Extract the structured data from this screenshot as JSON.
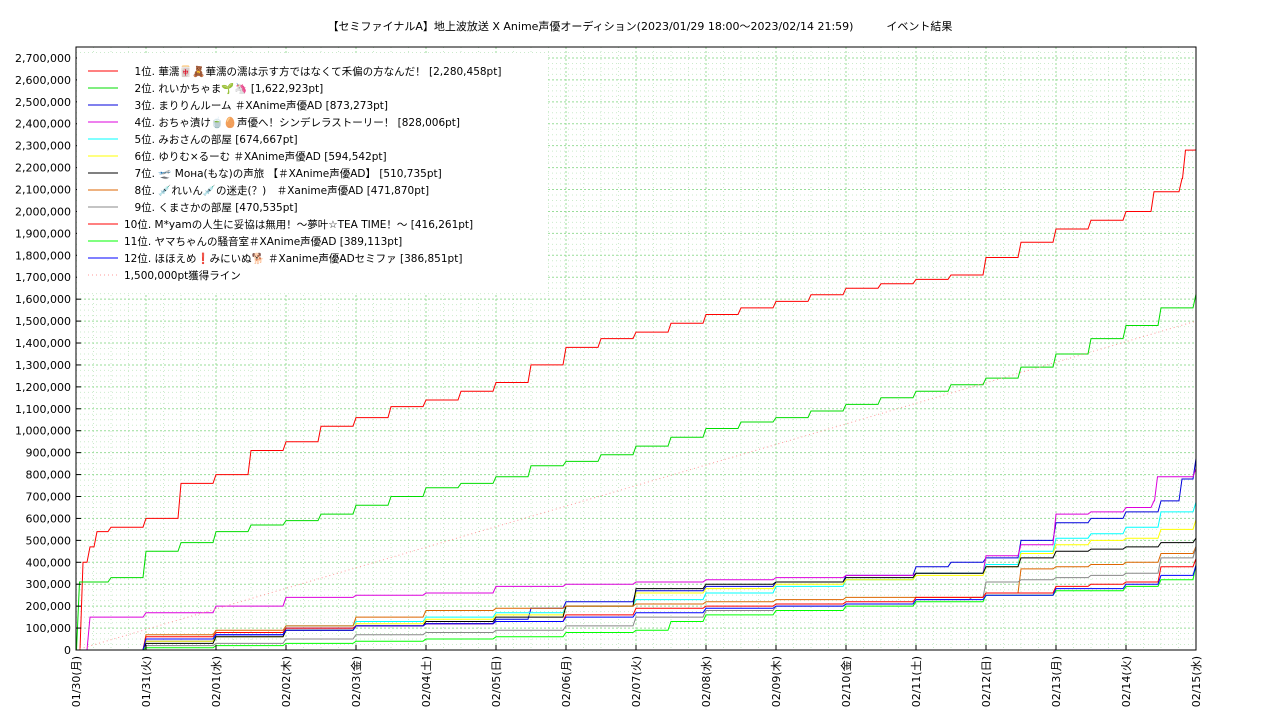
{
  "chart_data": {
    "type": "line",
    "title": "【セミファイナルA】地上波放送 X Anime声優オーディション(2023/01/29 18:00〜2023/02/14 21:59)　　　イベント結果",
    "xlabel": "",
    "ylabel": "",
    "xlim": [
      0,
      16
    ],
    "ylim": [
      0,
      2750000
    ],
    "grid": true,
    "legend_position": "top-left",
    "y_tick_labels": [
      "0",
      "100,000",
      "200,000",
      "300,000",
      "400,000",
      "500,000",
      "600,000",
      "700,000",
      "800,000",
      "900,000",
      "1,000,000",
      "1,100,000",
      "1,200,000",
      "1,300,000",
      "1,400,000",
      "1,500,000",
      "1,600,000",
      "1,700,000",
      "1,800,000",
      "1,900,000",
      "2,000,000",
      "2,100,000",
      "2,200,000",
      "2,300,000",
      "2,400,000",
      "2,500,000",
      "2,600,000",
      "2,700,000"
    ],
    "x_tick_labels": [
      "01/30(月)",
      "01/31(火)",
      "02/01(水)",
      "02/02(木)",
      "02/03(金)",
      "02/04(土)",
      "02/05(日)",
      "02/06(月)",
      "02/07(火)",
      "02/08(水)",
      "02/09(木)",
      "02/10(金)",
      "02/11(土)",
      "02/12(日)",
      "02/13(月)",
      "02/14(火)",
      "02/15(水)"
    ],
    "series": [
      {
        "name": "　1位. 華濡🀄🧸華濡の濡は示す方ではなくて禾偏の方なんだ！ [2,280,458pt]",
        "color": "#ff0000",
        "style": "solid",
        "x": [
          0,
          0.1,
          0.2,
          0.3,
          0.5,
          1.0,
          1.5,
          2.0,
          2.5,
          3.0,
          3.5,
          4.0,
          4.5,
          5.0,
          5.5,
          6.0,
          6.5,
          7.0,
          7.5,
          8.0,
          8.5,
          9.0,
          9.5,
          10.0,
          10.5,
          11.0,
          11.5,
          12.0,
          12.5,
          13.0,
          13.5,
          14.0,
          14.5,
          15.0,
          15.4,
          15.8,
          15.85,
          16.0
        ],
        "y": [
          0,
          400000,
          470000,
          540000,
          560000,
          600000,
          760000,
          800000,
          910000,
          950000,
          1020000,
          1060000,
          1110000,
          1140000,
          1180000,
          1220000,
          1300000,
          1380000,
          1420000,
          1450000,
          1490000,
          1530000,
          1560000,
          1590000,
          1620000,
          1650000,
          1670000,
          1690000,
          1710000,
          1790000,
          1860000,
          1920000,
          1960000,
          2000000,
          2090000,
          2150000,
          2280000,
          2280458
        ]
      },
      {
        "name": "　2位. れいかちゃま🌱🦄 [1,622,923pt]",
        "color": "#00dd00",
        "style": "solid",
        "x": [
          0,
          0.05,
          0.5,
          1.0,
          1.5,
          2.0,
          2.5,
          3.0,
          3.5,
          4.0,
          4.5,
          5.0,
          5.5,
          6.0,
          6.5,
          7.0,
          7.5,
          8.0,
          8.5,
          9.0,
          9.5,
          10.0,
          10.5,
          11.0,
          11.5,
          12.0,
          12.5,
          13.0,
          13.5,
          14.0,
          14.5,
          15.0,
          15.5,
          16.0
        ],
        "y": [
          0,
          310000,
          330000,
          450000,
          490000,
          540000,
          570000,
          590000,
          620000,
          660000,
          700000,
          740000,
          760000,
          790000,
          840000,
          860000,
          890000,
          930000,
          970000,
          1010000,
          1040000,
          1060000,
          1090000,
          1120000,
          1150000,
          1180000,
          1210000,
          1240000,
          1290000,
          1350000,
          1420000,
          1480000,
          1560000,
          1622923
        ]
      },
      {
        "name": "　3位. まりりんルーム ＃XAnime声優AD [873,273pt]",
        "color": "#0000dd",
        "style": "solid",
        "x": [
          0,
          1.0,
          2.0,
          3.0,
          4.0,
          5.0,
          6.0,
          6.5,
          7.0,
          8.0,
          9.0,
          10.0,
          11.0,
          12.0,
          12.5,
          13.0,
          13.5,
          14.0,
          14.5,
          15.0,
          15.5,
          15.8,
          16.0
        ],
        "y": [
          0,
          40000,
          70000,
          100000,
          110000,
          120000,
          140000,
          190000,
          220000,
          270000,
          290000,
          310000,
          340000,
          380000,
          400000,
          420000,
          500000,
          580000,
          600000,
          630000,
          680000,
          780000,
          873273
        ]
      },
      {
        "name": "　4位. おちゃ漬け🍵🥚声優へ！シンデレラストーリー！ [828,006pt]",
        "color": "#dd00dd",
        "style": "solid",
        "x": [
          0,
          0.2,
          1.0,
          2.0,
          3.0,
          4.0,
          5.0,
          6.0,
          7.0,
          8.0,
          9.0,
          10.0,
          11.0,
          12.0,
          13.0,
          13.5,
          14.0,
          14.5,
          15.0,
          15.4,
          15.45,
          16.0
        ],
        "y": [
          0,
          150000,
          170000,
          200000,
          240000,
          250000,
          260000,
          290000,
          300000,
          310000,
          320000,
          330000,
          340000,
          350000,
          430000,
          480000,
          620000,
          630000,
          650000,
          680000,
          790000,
          828006
        ]
      },
      {
        "name": "　5位. みおさんの部屋 [674,667pt]",
        "color": "#00ffff",
        "style": "solid",
        "x": [
          0,
          1.0,
          2.0,
          3.0,
          4.0,
          5.0,
          6.0,
          7.0,
          8.0,
          9.0,
          10.0,
          11.0,
          12.0,
          13.0,
          13.5,
          14.0,
          14.5,
          15.0,
          15.5,
          16.0
        ],
        "y": [
          0,
          50000,
          80000,
          110000,
          130000,
          150000,
          170000,
          200000,
          230000,
          260000,
          290000,
          320000,
          350000,
          390000,
          450000,
          510000,
          530000,
          560000,
          630000,
          674667
        ]
      },
      {
        "name": "　6位. ゆりむ×るーむ ＃XAnime声優AD [594,542pt]",
        "color": "#ffff00",
        "style": "solid",
        "x": [
          0,
          1.0,
          2.0,
          3.0,
          4.0,
          5.0,
          6.0,
          7.0,
          8.0,
          9.0,
          10.0,
          11.0,
          12.0,
          13.0,
          13.5,
          14.0,
          14.5,
          15.0,
          15.5,
          16.0
        ],
        "y": [
          0,
          40000,
          60000,
          90000,
          120000,
          140000,
          160000,
          200000,
          260000,
          280000,
          300000,
          320000,
          340000,
          380000,
          440000,
          480000,
          500000,
          510000,
          550000,
          594542
        ]
      },
      {
        "name": "　7位. 🛫 Мона(もな)の声旅 【＃XAnime声優AD】 [510,735pt]",
        "color": "#000000",
        "style": "solid",
        "x": [
          0,
          1.0,
          2.0,
          3.0,
          4.0,
          5.0,
          6.0,
          7.0,
          8.0,
          9.0,
          10.0,
          11.0,
          12.0,
          13.0,
          13.5,
          14.0,
          14.5,
          15.0,
          15.5,
          16.0
        ],
        "y": [
          0,
          30000,
          60000,
          90000,
          110000,
          130000,
          150000,
          200000,
          280000,
          300000,
          310000,
          330000,
          350000,
          380000,
          420000,
          450000,
          460000,
          470000,
          490000,
          510735
        ]
      },
      {
        "name": "　8位. 💉れいん💉の迷走(？)　＃Xanime声優AD [471,870pt]",
        "color": "#dd6600",
        "style": "solid",
        "x": [
          0,
          1.0,
          2.0,
          3.0,
          4.0,
          5.0,
          6.0,
          7.0,
          8.0,
          9.0,
          10.0,
          11.0,
          12.0,
          13.0,
          13.5,
          14.0,
          14.5,
          15.0,
          15.5,
          16.0
        ],
        "y": [
          0,
          70000,
          90000,
          110000,
          150000,
          180000,
          190000,
          200000,
          210000,
          220000,
          230000,
          240000,
          240000,
          260000,
          370000,
          380000,
          390000,
          400000,
          440000,
          471870
        ]
      },
      {
        "name": "　9位. くまさかの部屋 [470,535pt]",
        "color": "#888888",
        "style": "solid",
        "x": [
          0,
          1.0,
          2.0,
          3.0,
          4.0,
          5.0,
          6.0,
          7.0,
          8.0,
          9.0,
          10.0,
          11.0,
          12.0,
          12.8,
          13.0,
          13.5,
          14.0,
          14.5,
          15.0,
          15.5,
          16.0
        ],
        "y": [
          0,
          20000,
          30000,
          50000,
          70000,
          80000,
          90000,
          110000,
          150000,
          180000,
          200000,
          210000,
          230000,
          240000,
          310000,
          320000,
          330000,
          340000,
          350000,
          420000,
          470535
        ]
      },
      {
        "name": "10位. M*yamの人生に妥協は無用！〜夢叶☆TEA TIME！〜 [416,261pt]",
        "color": "#ff0000",
        "style": "solid",
        "x": [
          0,
          1.0,
          2.0,
          3.0,
          4.0,
          5.0,
          6.0,
          7.0,
          8.0,
          9.0,
          10.0,
          11.0,
          12.0,
          13.0,
          14.0,
          14.5,
          15.0,
          15.5,
          16.0
        ],
        "y": [
          0,
          60000,
          80000,
          100000,
          110000,
          120000,
          130000,
          160000,
          190000,
          200000,
          210000,
          220000,
          240000,
          260000,
          290000,
          300000,
          310000,
          380000,
          416261
        ]
      },
      {
        "name": "11位. ヤマちゃんの騒音室＃XAnime声優AD [389,113pt]",
        "color": "#00ff00",
        "style": "solid",
        "x": [
          0,
          1.0,
          2.0,
          3.0,
          4.0,
          5.0,
          6.0,
          7.0,
          8.0,
          8.5,
          9.0,
          10.0,
          11.0,
          12.0,
          13.0,
          14.0,
          15.0,
          15.5,
          16.0
        ],
        "y": [
          0,
          10000,
          20000,
          30000,
          40000,
          50000,
          60000,
          80000,
          90000,
          130000,
          160000,
          180000,
          200000,
          220000,
          250000,
          270000,
          290000,
          320000,
          389113
        ]
      },
      {
        "name": "12位. ほほえめ❗️みにいぬ🐕 ＃Xanime声優ADセミファ [386,851pt]",
        "color": "#0000ff",
        "style": "solid",
        "x": [
          0,
          1.0,
          2.0,
          3.0,
          4.0,
          5.0,
          6.0,
          7.0,
          8.0,
          9.0,
          10.0,
          11.0,
          12.0,
          13.0,
          14.0,
          15.0,
          15.5,
          16.0
        ],
        "y": [
          0,
          50000,
          70000,
          90000,
          110000,
          120000,
          130000,
          150000,
          170000,
          190000,
          200000,
          210000,
          230000,
          250000,
          280000,
          300000,
          340000,
          386851
        ]
      },
      {
        "name": "1,500,000pt獲得ライン",
        "color": "#ff9999",
        "style": "dotted",
        "x": [
          0,
          16
        ],
        "y": [
          0,
          1500000
        ]
      }
    ]
  }
}
